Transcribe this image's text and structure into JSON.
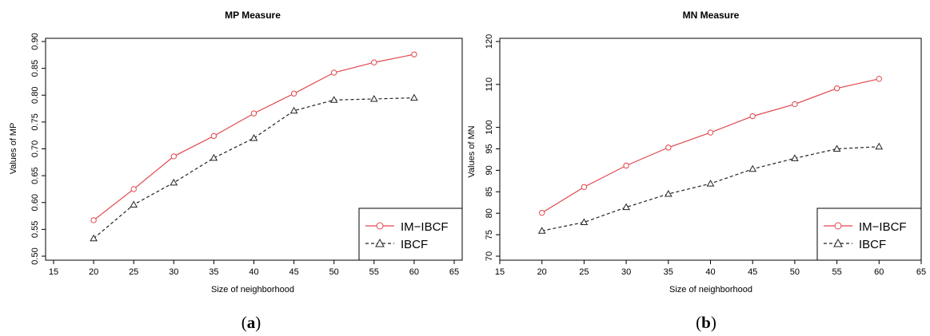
{
  "chart_data": [
    {
      "type": "line",
      "title": "MP Measure",
      "xlabel": "Size of neighborhood",
      "ylabel": "Values of MP",
      "xlim": [
        15,
        65
      ],
      "ylim": [
        0.5,
        0.9
      ],
      "xticks": [
        "15",
        "20",
        "25",
        "30",
        "35",
        "40",
        "45",
        "50",
        "55",
        "60",
        "65"
      ],
      "yticks": [
        "0.50",
        "0.55",
        "0.60",
        "0.65",
        "0.70",
        "0.75",
        "0.80",
        "0.85",
        "0.90"
      ],
      "x": [
        20,
        25,
        30,
        35,
        40,
        45,
        50,
        55,
        60
      ],
      "series": [
        {
          "name": "IM−IBCF",
          "values": [
            0.567,
            0.625,
            0.686,
            0.724,
            0.766,
            0.803,
            0.842,
            0.861,
            0.876
          ],
          "color": "#e0474c",
          "marker": "circle",
          "dash": "solid"
        },
        {
          "name": "IBCF",
          "values": [
            0.533,
            0.596,
            0.637,
            0.683,
            0.72,
            0.771,
            0.791,
            0.793,
            0.795
          ],
          "color": "#222222",
          "marker": "triangle",
          "dash": "dashed"
        }
      ],
      "grid": false,
      "legend_position": "bottom-right",
      "caption": {
        "open": "(",
        "letter": "a",
        "close": ")"
      }
    },
    {
      "type": "line",
      "title": "MN Measure",
      "xlabel": "Size of neighborhood",
      "ylabel": "Values of MN",
      "xlim": [
        15,
        65
      ],
      "ylim": [
        70,
        120
      ],
      "xticks": [
        "15",
        "20",
        "25",
        "30",
        "35",
        "40",
        "45",
        "50",
        "55",
        "60",
        "65"
      ],
      "yticks": [
        "70",
        "75",
        "80",
        "85",
        "90",
        "95",
        "100",
        "110",
        "120"
      ],
      "ytick_values": [
        70,
        75,
        80,
        85,
        90,
        95,
        100,
        110,
        120
      ],
      "x": [
        20,
        25,
        30,
        35,
        40,
        45,
        50,
        55,
        60
      ],
      "series": [
        {
          "name": "IM−IBCF",
          "values": [
            80.1,
            86.1,
            91.1,
            95.3,
            98.8,
            102.6,
            105.4,
            109.1,
            111.3
          ],
          "color": "#e0474c",
          "marker": "circle",
          "dash": "solid"
        },
        {
          "name": "IBCF",
          "values": [
            75.9,
            77.9,
            81.4,
            84.5,
            86.9,
            90.3,
            92.8,
            95.0,
            95.5
          ],
          "color": "#222222",
          "marker": "triangle",
          "dash": "dashed"
        }
      ],
      "grid": false,
      "legend_position": "bottom-right",
      "caption": {
        "open": "(",
        "letter": "b",
        "close": ")"
      }
    }
  ]
}
